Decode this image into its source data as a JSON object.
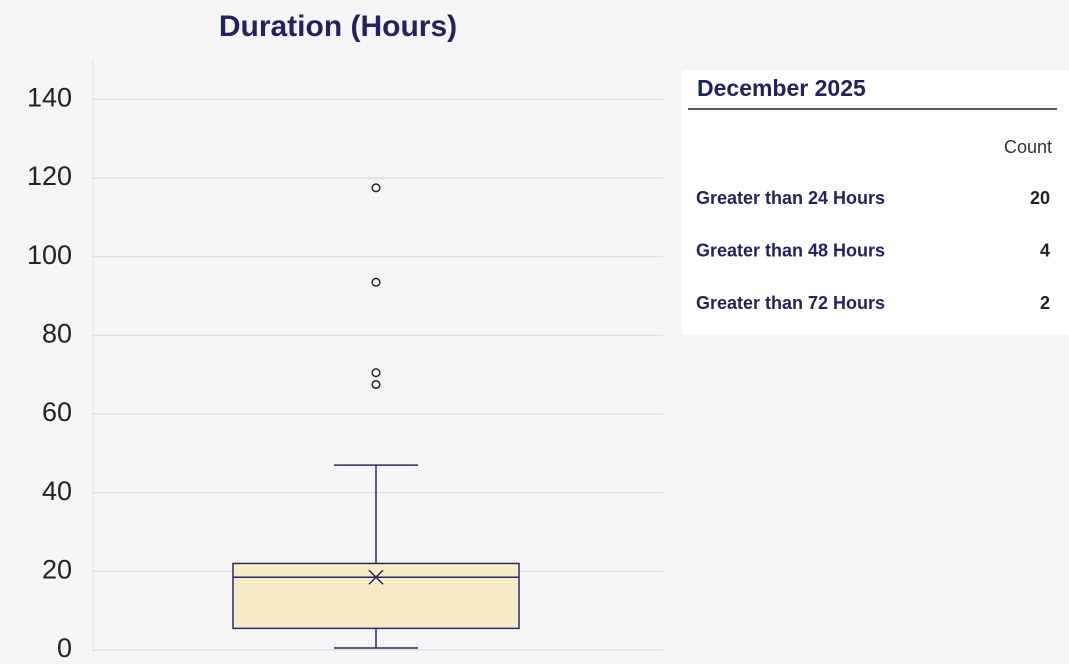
{
  "chart_data": {
    "type": "box",
    "title": "Duration (Hours)",
    "ylim": [
      0,
      150
    ],
    "yticks": [
      0,
      20,
      40,
      60,
      80,
      100,
      120,
      140
    ],
    "grid": true,
    "color": "#f7ebc8",
    "line_color": "#2a2a5e",
    "min": 0.5,
    "q1": 5.5,
    "median": 18.5,
    "q3": 22,
    "max": 47,
    "mean": 18.5,
    "outliers": [
      117.5,
      93.5,
      70.5,
      67.5
    ]
  },
  "table": {
    "title": "December 2025",
    "header": [
      "Count"
    ],
    "rows": [
      [
        "Greater than 24 Hours",
        20
      ],
      [
        "Greater than 48 Hours",
        4
      ],
      [
        "Greater than 72 Hours",
        2
      ]
    ]
  }
}
